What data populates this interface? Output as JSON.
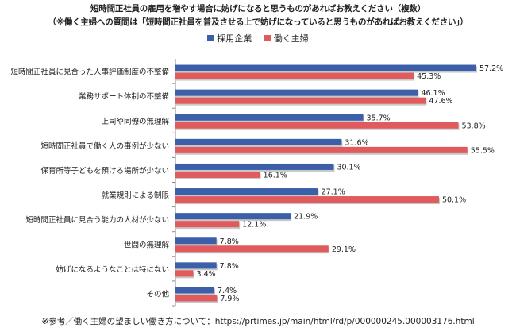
{
  "title_line1": "短時間正社員の雇用を増やす場合に妨げになると思うものがあればお教えください（複数）",
  "title_line2": "（※働く主婦への質問は「短時間正社員を普及させる上で妨げになっていると思うものがあればお教えください」）",
  "footer": "※参考／働く主婦の望ましい働き方について：https://prtimes.jp/main/html/rd/p/000000245.000003176.html",
  "colors": {
    "employer": "#3b5fa8",
    "housewife": "#e05b5e"
  },
  "chart_data": {
    "type": "bar",
    "orientation": "horizontal",
    "categories": [
      "短時間正社員に見合った人事評価制度の不整備",
      "業務サポート体制の不整備",
      "上司や同僚の無理解",
      "短時間正社員で働く人の事例が少ない",
      "保育所等子どもを預ける場所が少ない",
      "就業規則による制限",
      "短時間正社員に見合う能力の人材が少ない",
      "世間の無理解",
      "妨げになるようなことは特にない",
      "その他"
    ],
    "series": [
      {
        "name": "採用企業",
        "values": [
          57.2,
          46.1,
          35.7,
          31.6,
          30.1,
          27.1,
          21.9,
          7.8,
          7.8,
          7.4
        ],
        "labels": [
          "57.2%",
          "46.1%",
          "35.7%",
          "31.6%",
          "30.1%",
          "27.1%",
          "21.9%",
          "7.8%",
          "7.8%",
          "7.4%"
        ]
      },
      {
        "name": "働く主婦",
        "values": [
          45.3,
          47.6,
          53.8,
          55.5,
          16.1,
          50.1,
          12.1,
          29.1,
          3.4,
          7.9
        ],
        "labels": [
          "45.3%",
          "47.6%",
          "53.8%",
          "55.5%",
          "16.1%",
          "50.1%",
          "12.1%",
          "29.1%",
          "3.4%",
          "7.9%"
        ]
      }
    ],
    "xlim": [
      0,
      60
    ],
    "legend_position": "top-center",
    "grid": false
  }
}
